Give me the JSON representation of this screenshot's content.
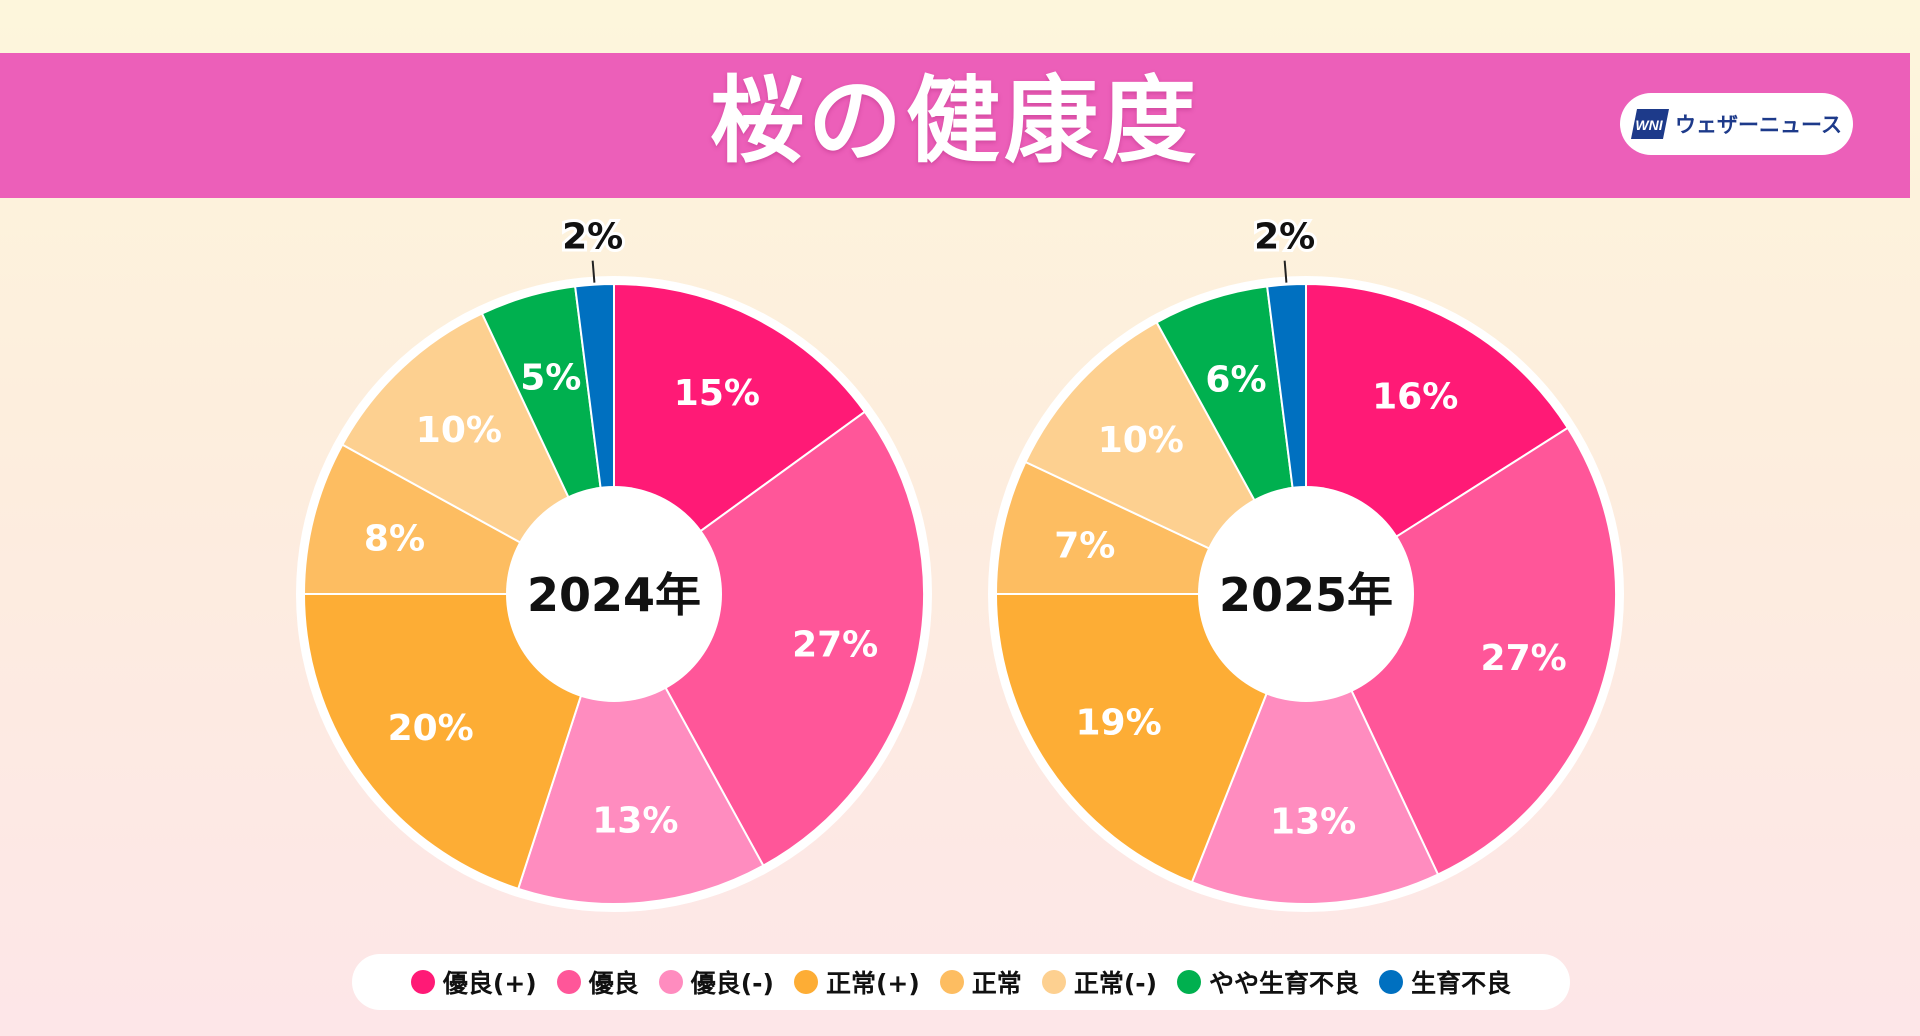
{
  "header": {
    "title": "桜の健康度",
    "brand_name": "ウェザーニュース",
    "brand_logo_text": "WNI"
  },
  "colors": {
    "title_band": "#ec5fb9",
    "series": [
      "#ff1a76",
      "#ff5699",
      "#ff8cbf",
      "#fdad35",
      "#fdbd61",
      "#fdd090",
      "#00b04f",
      "#0070c0"
    ]
  },
  "legend": {
    "items": [
      {
        "label": "優良(+)",
        "color": "#ff1a76"
      },
      {
        "label": "優良",
        "color": "#ff5699"
      },
      {
        "label": "優良(-)",
        "color": "#ff8cbf"
      },
      {
        "label": "正常(+)",
        "color": "#fdad35"
      },
      {
        "label": "正常",
        "color": "#fdbd61"
      },
      {
        "label": "正常(-)",
        "color": "#fdd090"
      },
      {
        "label": "やや生育不良",
        "color": "#00b04f"
      },
      {
        "label": "生育不良",
        "color": "#0070c0"
      }
    ]
  },
  "chart_data": [
    {
      "type": "pie",
      "center_label": "2024年",
      "categories": [
        "優良(+)",
        "優良",
        "優良(-)",
        "正常(+)",
        "正常",
        "正常(-)",
        "やや生育不良",
        "生育不良"
      ],
      "values": [
        15,
        27,
        13,
        20,
        8,
        10,
        5,
        2
      ],
      "data_labels": [
        "15%",
        "27%",
        "13%",
        "20%",
        "8%",
        "10%",
        "5%",
        "2%"
      ],
      "legend_position": "bottom"
    },
    {
      "type": "pie",
      "center_label": "2025年",
      "categories": [
        "優良(+)",
        "優良",
        "優良(-)",
        "正常(+)",
        "正常",
        "正常(-)",
        "やや生育不良",
        "生育不良"
      ],
      "values": [
        16,
        27,
        13,
        19,
        7,
        10,
        6,
        2
      ],
      "data_labels": [
        "16%",
        "27%",
        "13%",
        "19%",
        "7%",
        "10%",
        "6%",
        "2%"
      ],
      "legend_position": "bottom"
    }
  ]
}
